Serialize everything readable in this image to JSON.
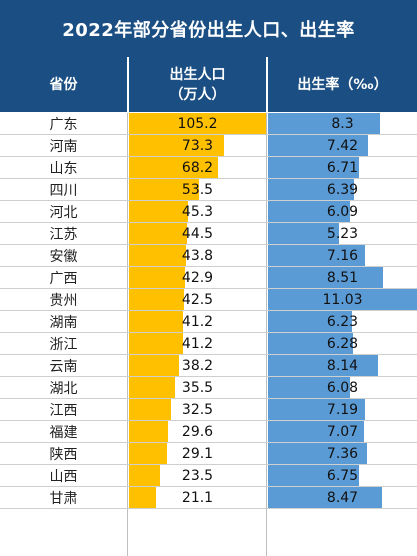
{
  "title": "2022年部分省份出生人口、出生率",
  "columns": {
    "province": "省份",
    "births_line1": "出生人口",
    "births_line2": "（万人）",
    "rate": "出生率（‰）"
  },
  "colors": {
    "header_bg": "#1b4f83",
    "births_bar": "#ffc000",
    "rate_bar": "#5b9bd5"
  },
  "chart_data": {
    "type": "table",
    "title": "2022年部分省份出生人口、出生率",
    "columns": [
      "省份",
      "出生人口（万人）",
      "出生率（‰）"
    ],
    "births_max": 105.2,
    "rate_max": 11.03,
    "rows": [
      {
        "province": "广东",
        "births": "105.2",
        "rate": "8.3"
      },
      {
        "province": "河南",
        "births": "73.3",
        "rate": "7.42"
      },
      {
        "province": "山东",
        "births": "68.2",
        "rate": "6.71"
      },
      {
        "province": "四川",
        "births": "53.5",
        "rate": "6.39"
      },
      {
        "province": "河北",
        "births": "45.3",
        "rate": "6.09"
      },
      {
        "province": "江苏",
        "births": "44.5",
        "rate": "5.23"
      },
      {
        "province": "安徽",
        "births": "43.8",
        "rate": "7.16"
      },
      {
        "province": "广西",
        "births": "42.9",
        "rate": "8.51"
      },
      {
        "province": "贵州",
        "births": "42.5",
        "rate": "11.03"
      },
      {
        "province": "湖南",
        "births": "41.2",
        "rate": "6.23"
      },
      {
        "province": "浙江",
        "births": "41.2",
        "rate": "6.28"
      },
      {
        "province": "云南",
        "births": "38.2",
        "rate": "8.14"
      },
      {
        "province": "湖北",
        "births": "35.5",
        "rate": "6.08"
      },
      {
        "province": "江西",
        "births": "32.5",
        "rate": "7.19"
      },
      {
        "province": "福建",
        "births": "29.6",
        "rate": "7.07"
      },
      {
        "province": "陕西",
        "births": "29.1",
        "rate": "7.36"
      },
      {
        "province": "山西",
        "births": "23.5",
        "rate": "6.75"
      },
      {
        "province": "甘肃",
        "births": "21.1",
        "rate": "8.47"
      }
    ]
  }
}
